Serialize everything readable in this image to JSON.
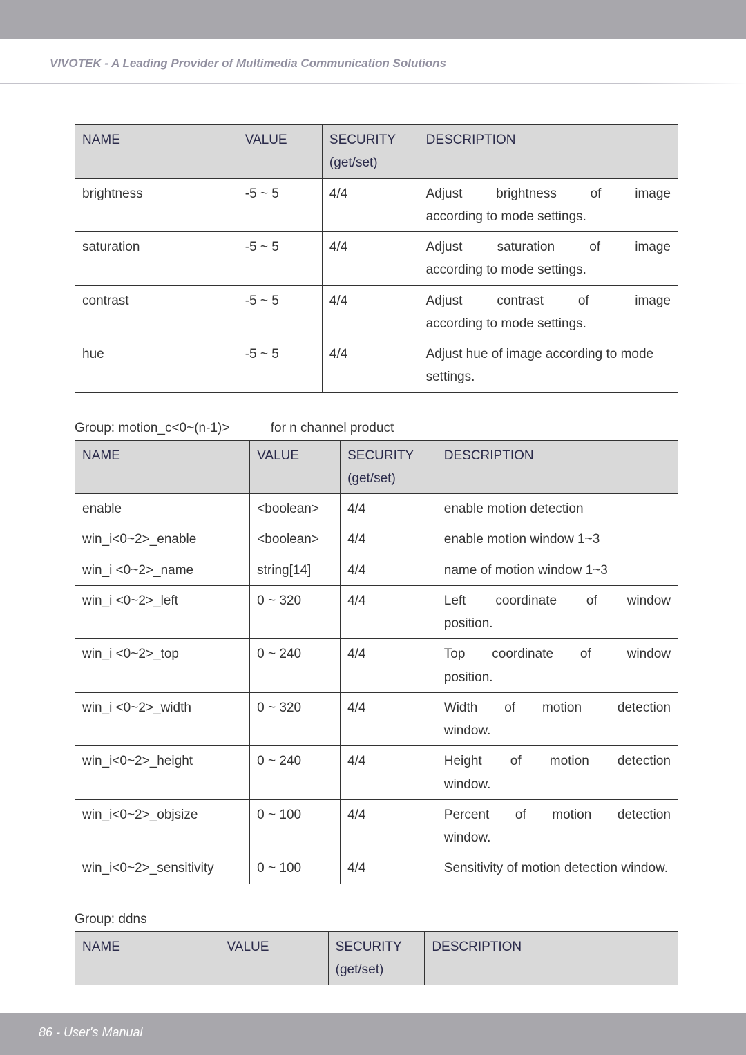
{
  "header": {
    "title": "VIVOTEK - A Leading Provider of Multimedia Communication Solutions"
  },
  "table1": {
    "headers": {
      "name": "NAME",
      "value": "VALUE",
      "security": "SECURITY (get/set)",
      "description": "DESCRIPTION"
    },
    "rows": [
      {
        "name": "brightness",
        "value": "-5 ~ 5",
        "security": "4/4",
        "description": "Adjust brightness of image according to mode settings."
      },
      {
        "name": "saturation",
        "value": "-5 ~ 5",
        "security": "4/4",
        "description": "Adjust saturation of image according to mode settings."
      },
      {
        "name": "contrast",
        "value": "-5 ~ 5",
        "security": "4/4",
        "description": "Adjust contrast of image according to mode settings."
      },
      {
        "name": "hue",
        "value": "-5 ~ 5",
        "security": "4/4",
        "description": "Adjust hue of image according to mode settings."
      }
    ]
  },
  "group2": {
    "label": "Group: motion_c<0~(n-1)>",
    "suffix": "for n channel product"
  },
  "table2": {
    "headers": {
      "name": "NAME",
      "value": "VALUE",
      "security": "SECURITY (get/set)",
      "description": "DESCRIPTION"
    },
    "rows": [
      {
        "name": "enable",
        "value": "<boolean>",
        "security": "4/4",
        "description": "enable motion detection"
      },
      {
        "name": "win_i<0~2>_enable",
        "value": "<boolean>",
        "security": "4/4",
        "description": "enable motion window 1~3"
      },
      {
        "name": "win_i <0~2>_name",
        "value": "string[14]",
        "security": "4/4",
        "description": "name of motion window 1~3"
      },
      {
        "name": "win_i <0~2>_left",
        "value": "0 ~ 320",
        "security": "4/4",
        "description": "Left coordinate of window position."
      },
      {
        "name": "win_i <0~2>_top",
        "value": "0 ~ 240",
        "security": "4/4",
        "description": "Top coordinate of window position."
      },
      {
        "name": "win_i <0~2>_width",
        "value": "0 ~ 320",
        "security": "4/4",
        "description": "Width of motion detection window."
      },
      {
        "name": "win_i<0~2>_height",
        "value": "0 ~ 240",
        "security": "4/4",
        "description": "Height of motion detection window."
      },
      {
        "name": "win_i<0~2>_objsize",
        "value": "0 ~ 100",
        "security": "4/4",
        "description": "Percent of motion detection window."
      },
      {
        "name": "win_i<0~2>_sensitivity",
        "value": "0 ~ 100",
        "security": "4/4",
        "description": "Sensitivity of motion detection window."
      }
    ]
  },
  "group3": {
    "label": "Group: ddns"
  },
  "table3": {
    "headers": {
      "name": "NAME",
      "value": "VALUE",
      "security": "SECURITY (get/set)",
      "description": "DESCRIPTION"
    }
  },
  "footer": {
    "text": "86 - User's Manual"
  }
}
